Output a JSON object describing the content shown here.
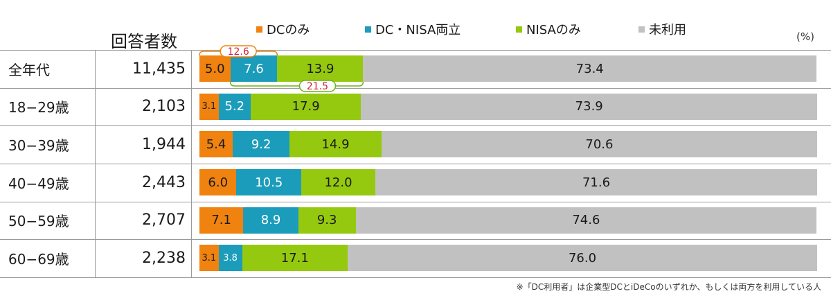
{
  "chart_data": {
    "type": "bar",
    "orientation": "horizontal",
    "stacked": true,
    "unit": "(%)",
    "header_respondents": "回答者数",
    "categories": [
      "全年代",
      "18−29歳",
      "30−39歳",
      "40−49歳",
      "50−59歳",
      "60−69歳"
    ],
    "respondents": [
      "11,435",
      "2,103",
      "1,944",
      "2,443",
      "2,707",
      "2,238"
    ],
    "series": [
      {
        "name": "DCのみ",
        "color": "#f0820f",
        "values": [
          5.0,
          3.1,
          5.4,
          6.0,
          7.1,
          3.1
        ]
      },
      {
        "name": "DC・NISA両立",
        "color": "#1b9cbb",
        "values": [
          7.6,
          5.2,
          9.2,
          10.5,
          8.9,
          3.8
        ]
      },
      {
        "name": "NISAのみ",
        "color": "#95c90f",
        "values": [
          13.9,
          17.9,
          14.9,
          12.0,
          9.3,
          17.1
        ]
      },
      {
        "name": "未利用",
        "color": "#c1c1c1",
        "values": [
          73.4,
          73.9,
          70.6,
          71.6,
          74.6,
          76.0
        ]
      }
    ],
    "value_labels": [
      [
        "5.0",
        "7.6",
        "13.9",
        "73.4"
      ],
      [
        "3.1",
        "5.2",
        "17.9",
        "73.9"
      ],
      [
        "5.4",
        "9.2",
        "14.9",
        "70.6"
      ],
      [
        "6.0",
        "10.5",
        "12.0",
        "71.6"
      ],
      [
        "7.1",
        "8.9",
        "9.3",
        "74.6"
      ],
      [
        "3.1",
        "3.8",
        "17.1",
        "76.0"
      ]
    ],
    "annotations": {
      "dc_total": "12.6",
      "nisa_total": "21.5"
    },
    "footnote": "※「DC利用者」は企業型DCとiDeCoのいずれか、もしくは両方を利用している人"
  }
}
